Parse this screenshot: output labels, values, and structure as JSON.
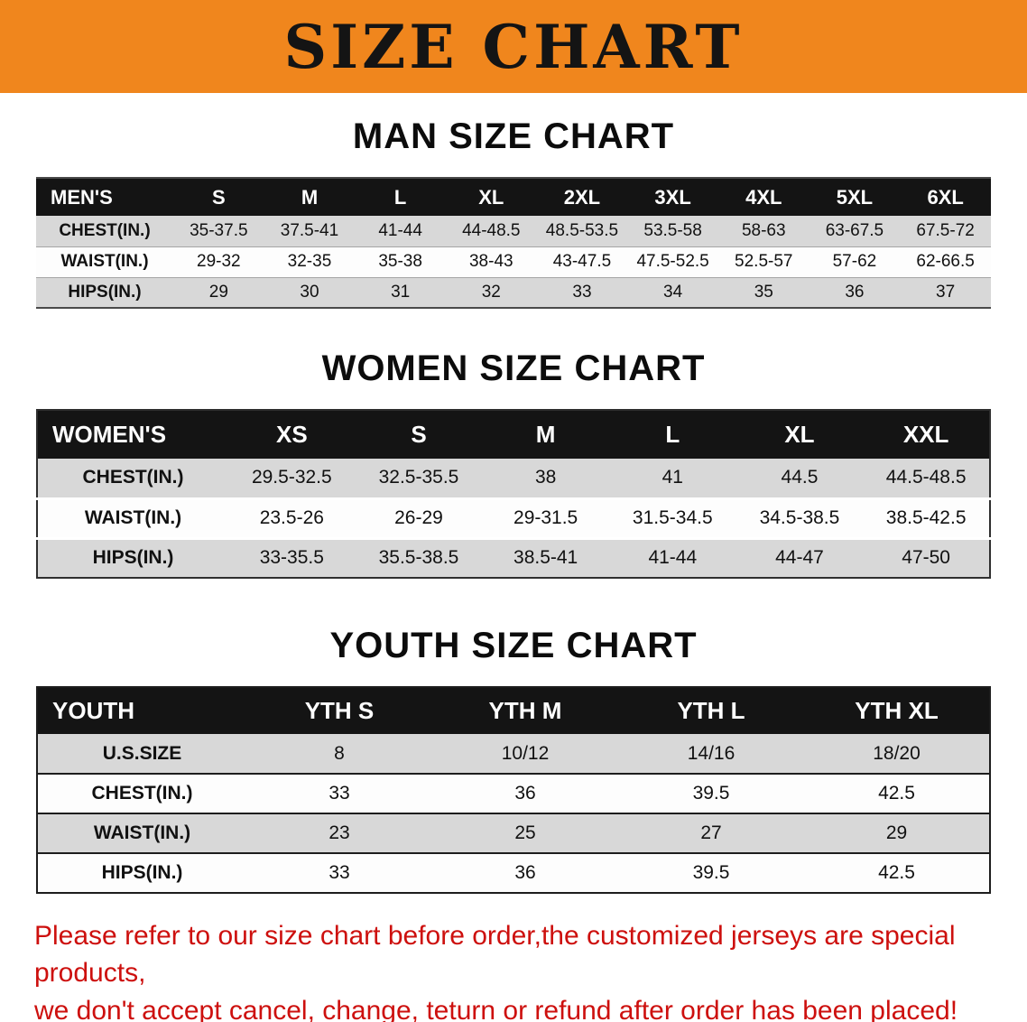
{
  "banner": {
    "title": "SIZE CHART",
    "bg_color": "#F0861D"
  },
  "chart_data": [
    {
      "type": "table",
      "title": "MAN SIZE CHART",
      "header_label": "MEN'S",
      "columns": [
        "S",
        "M",
        "L",
        "XL",
        "2XL",
        "3XL",
        "4XL",
        "5XL",
        "6XL"
      ],
      "rows": [
        {
          "label": "CHEST(IN.)",
          "values": [
            "35-37.5",
            "37.5-41",
            "41-44",
            "44-48.5",
            "48.5-53.5",
            "53.5-58",
            "58-63",
            "63-67.5",
            "67.5-72"
          ]
        },
        {
          "label": "WAIST(IN.)",
          "values": [
            "29-32",
            "32-35",
            "35-38",
            "38-43",
            "43-47.5",
            "47.5-52.5",
            "52.5-57",
            "57-62",
            "62-66.5"
          ]
        },
        {
          "label": "HIPS(IN.)",
          "values": [
            "29",
            "30",
            "31",
            "32",
            "33",
            "34",
            "35",
            "36",
            "37"
          ]
        }
      ]
    },
    {
      "type": "table",
      "title": "WOMEN SIZE CHART",
      "header_label": "WOMEN'S",
      "columns": [
        "XS",
        "S",
        "M",
        "L",
        "XL",
        "XXL"
      ],
      "rows": [
        {
          "label": "CHEST(IN.)",
          "values": [
            "29.5-32.5",
            "32.5-35.5",
            "38",
            "41",
            "44.5",
            "44.5-48.5"
          ]
        },
        {
          "label": "WAIST(IN.)",
          "values": [
            "23.5-26",
            "26-29",
            "29-31.5",
            "31.5-34.5",
            "34.5-38.5",
            "38.5-42.5"
          ]
        },
        {
          "label": "HIPS(IN.)",
          "values": [
            "33-35.5",
            "35.5-38.5",
            "38.5-41",
            "41-44",
            "44-47",
            "47-50"
          ]
        }
      ]
    },
    {
      "type": "table",
      "title": "YOUTH SIZE CHART",
      "header_label": "YOUTH",
      "columns": [
        "YTH S",
        "YTH M",
        "YTH L",
        "YTH XL"
      ],
      "rows": [
        {
          "label": "U.S.SIZE",
          "values": [
            "8",
            "10/12",
            "14/16",
            "18/20"
          ]
        },
        {
          "label": "CHEST(IN.)",
          "values": [
            "33",
            "36",
            "39.5",
            "42.5"
          ]
        },
        {
          "label": "WAIST(IN.)",
          "values": [
            "23",
            "25",
            "27",
            "29"
          ]
        },
        {
          "label": "HIPS(IN.)",
          "values": [
            "33",
            "36",
            "39.5",
            "42.5"
          ]
        }
      ]
    }
  ],
  "footer": {
    "line1": "Please refer to our size chart before order,the customized jerseys are special products,",
    "line2": "we don't accept cancel, change, teturn or refund after order has been placed!",
    "text_color": "#cd100e"
  }
}
